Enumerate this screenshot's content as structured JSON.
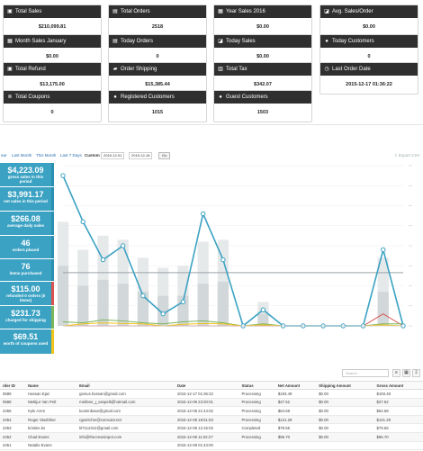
{
  "cards": [
    {
      "label": "Total Sales",
      "value": "$210,099.81",
      "icon": "money-icon"
    },
    {
      "label": "Total Orders",
      "value": "2518",
      "icon": "orders-icon"
    },
    {
      "label": "Year Sales 2016",
      "value": "$0.00",
      "icon": "calendar-icon"
    },
    {
      "label": "Avg. Sales/Order",
      "value": "$0.00",
      "icon": "chart-icon"
    },
    {
      "label": "Month Sales January",
      "value": "$0.00",
      "icon": "calendar-icon"
    },
    {
      "label": "Today Orders",
      "value": "0",
      "icon": "orders-icon"
    },
    {
      "label": "Today Sales",
      "value": "$0.00",
      "icon": "chart-icon"
    },
    {
      "label": "Today Customers",
      "value": "0",
      "icon": "user-icon"
    },
    {
      "label": "Total Refund",
      "value": "$13,175.00",
      "icon": "refund-icon"
    },
    {
      "label": "Order Shipping",
      "value": "$15,385.44",
      "icon": "truck-icon"
    },
    {
      "label": "Total Tax",
      "value": "$342.07",
      "icon": "tax-icon"
    },
    {
      "label": "Last Order Date",
      "value": "2015-12-17 01:36:22",
      "icon": "clock-icon"
    },
    {
      "label": "Total Coupons",
      "value": "0",
      "icon": "coupon-icon"
    },
    {
      "label": "Registered Customers",
      "value": "1015",
      "icon": "users-icon"
    },
    {
      "label": "Guest Customers",
      "value": "1503",
      "icon": "user-icon"
    }
  ],
  "range_bar": {
    "year_suffix": "ear",
    "last_month": "Last Month",
    "this_month": "This Month",
    "last_7_days": "Last 7 Days",
    "custom": "Custom",
    "date_from": "2015-12-01",
    "date_to": "2015-12-18",
    "go": "Go",
    "export": "Export CSV"
  },
  "sidebar": [
    {
      "num": "$4,223.09",
      "label": "gross sales in this period",
      "accent": "#2a8fb0"
    },
    {
      "num": "$3,991.17",
      "label": "net sales in this period",
      "accent": "#2a8fb0"
    },
    {
      "num": "$266.08",
      "label": "average daily sales",
      "accent": "#2a8fb0"
    },
    {
      "num": "46",
      "label": "orders placed",
      "accent": "#2a8fb0"
    },
    {
      "num": "76",
      "label": "items purchased",
      "accent": "#2a8fb0"
    },
    {
      "num": "$115.00",
      "label": "refunded 0 orders (0 items)",
      "accent": "#d9534f"
    },
    {
      "num": "$231.73",
      "label": "charged for shipping",
      "accent": "#7ab55c"
    },
    {
      "num": "$69.51",
      "label": "worth of coupons used",
      "accent": "#f0c419"
    }
  ],
  "chart_data": {
    "type": "line",
    "series": [
      {
        "color": "#3ba2c3",
        "values": [
          750,
          520,
          330,
          400,
          150,
          60,
          120,
          560,
          330,
          0,
          80,
          0,
          0,
          0,
          0,
          0,
          380,
          0
        ]
      },
      {
        "color": "#f0c419",
        "values": [
          0,
          10,
          15,
          12,
          10,
          0,
          8,
          12,
          10,
          0,
          5,
          0,
          0,
          0,
          0,
          0,
          5,
          0
        ]
      },
      {
        "color": "#7ab55c",
        "values": [
          20,
          15,
          30,
          25,
          15,
          10,
          20,
          25,
          15,
          0,
          10,
          0,
          0,
          0,
          0,
          0,
          10,
          10
        ]
      },
      {
        "color": "#d9534f",
        "values": [
          0,
          0,
          0,
          0,
          0,
          0,
          0,
          0,
          0,
          0,
          0,
          0,
          0,
          0,
          0,
          0,
          60,
          0
        ]
      }
    ],
    "bars": [
      520,
      380,
      450,
      430,
      340,
      290,
      300,
      420,
      430,
      0,
      120,
      0,
      0,
      0,
      0,
      0,
      340,
      0
    ],
    "bars2": [
      300,
      200,
      230,
      210,
      170,
      150,
      150,
      210,
      220,
      0,
      60,
      0,
      0,
      0,
      0,
      0,
      170,
      0
    ],
    "avg_line": 266,
    "ylim": [
      0,
      800
    ]
  },
  "table": {
    "search_placeholder": "Search",
    "columns": [
      "rder ID",
      "Name",
      "Email",
      "Date",
      "Status",
      "Net Amount",
      "Shipping Amount",
      "Gross Amount"
    ],
    "rows": [
      [
        "0589",
        "Hassan Ejaz",
        "genius.hassan@gmail.com",
        "2015-12-17 01:36:22",
        "Processing",
        "$193.49",
        "$0.00",
        "$193.49"
      ],
      [
        "0588",
        "Mettijur Van Pelt",
        "mebbse_j_vanpelt@hotmail.com",
        "2015-12-09 23:20:01",
        "Processing",
        "$27.52",
        "$0.00",
        "$27.52"
      ],
      [
        "2455",
        "Kyle Azen",
        "kcamnbase@gmail.com",
        "2015-12-08 21:44:02",
        "Processing",
        "$64.68",
        "$0.00",
        "$64.68"
      ],
      [
        "2454",
        "Roger Slusbhier",
        "rgustrcher@comcast.net",
        "2015-12-08 18:51:53",
        "Processing",
        "$121.29",
        "$0.00",
        "$121.29"
      ],
      [
        "2453",
        "kristine.ks",
        "kl7112312@gmail.com",
        "2015-12-08 12:15:02",
        "Completed",
        "$79.55",
        "$0.00",
        "$79.55"
      ],
      [
        "2452",
        "Chad Evans",
        "info@thecrewsinpot.com",
        "2015-12-08 11:02:27",
        "Processing",
        "$96.70",
        "$0.00",
        "$96.70"
      ],
      [
        "2451",
        "Natalie Evans",
        "",
        "2015-12-08 01:43:00",
        "",
        "",
        "",
        ""
      ]
    ]
  }
}
